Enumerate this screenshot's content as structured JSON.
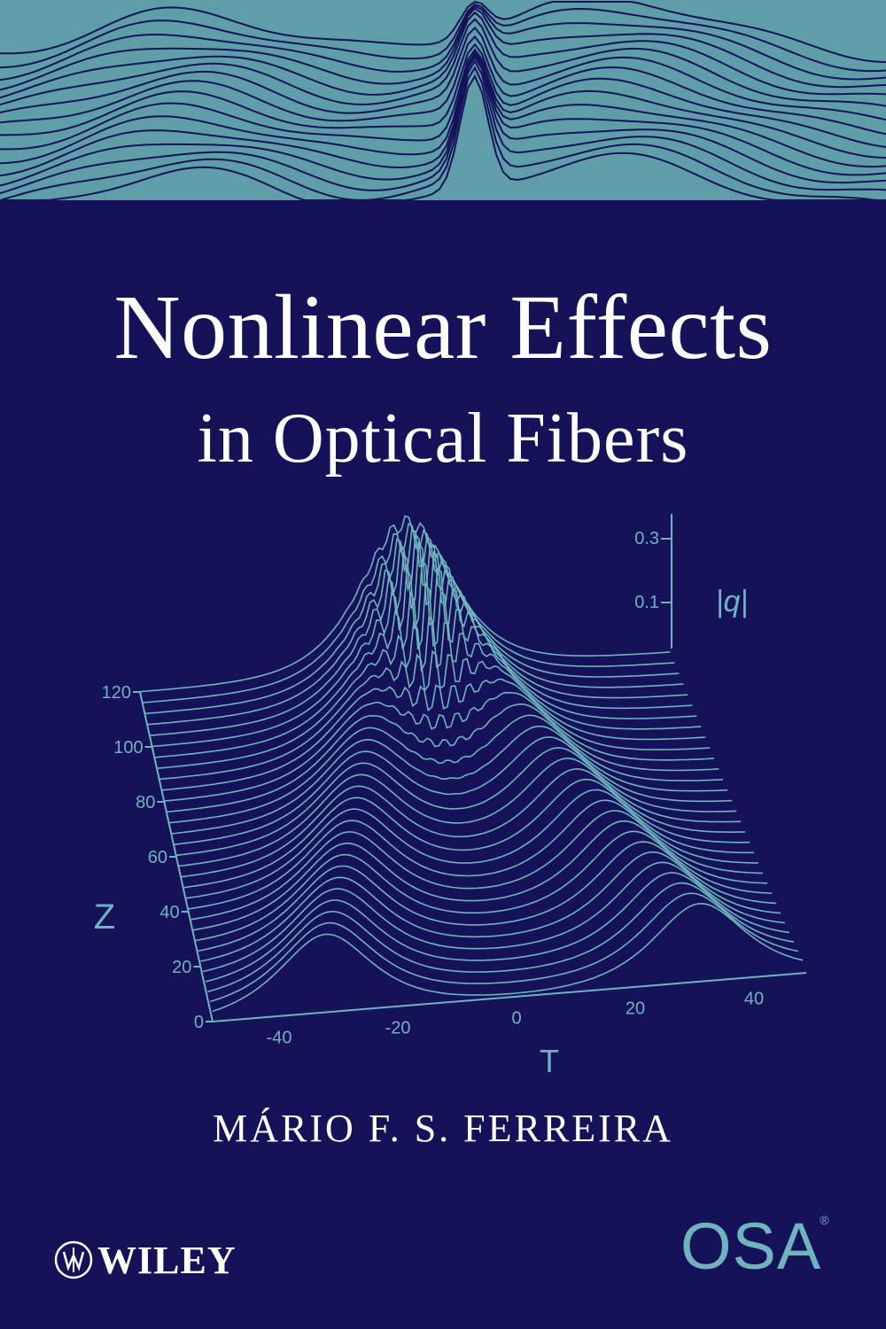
{
  "cover": {
    "title_line1": "Nonlinear Effects",
    "title_line2": "in Optical Fibers",
    "author": "MÁRIO F. S. FERREIRA",
    "publisher": "WILEY",
    "partner": "OSA",
    "partner_mark": "®"
  },
  "figure": {
    "z_axis_label": "Z",
    "t_axis_label": "T",
    "amplitude_axis_label": "|q|",
    "z_ticks": [
      "0",
      "20",
      "40",
      "60",
      "80",
      "100",
      "120"
    ],
    "t_ticks": [
      "-40",
      "-20",
      "0",
      "20",
      "40"
    ],
    "amplitude_ticks": [
      "0.1",
      "0.3"
    ]
  },
  "colors": {
    "background": "#15125a",
    "teal": "#6fb3be",
    "band": "#5f9ea8",
    "white": "#ffffff"
  }
}
